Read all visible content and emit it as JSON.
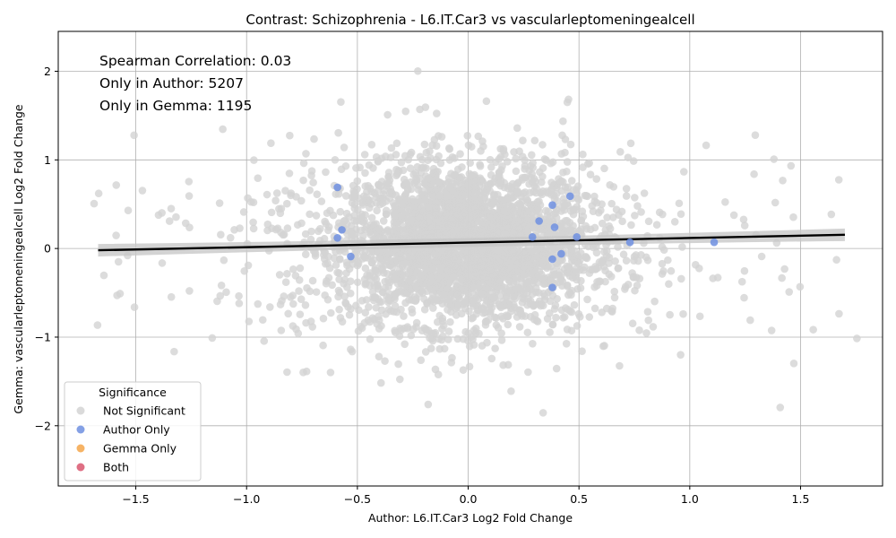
{
  "chart_data": {
    "type": "scatter",
    "title": "Contrast: Schizophrenia - L6.IT.Car3 vs vascularleptomeningealcell",
    "xlabel": "Author: L6.IT.Car3 Log2 Fold Change",
    "ylabel": "Gemma: vascularleptomeningealcell Log2 Fold Change",
    "xlim": [
      -1.85,
      1.87
    ],
    "ylim": [
      -2.68,
      2.45
    ],
    "xticks": [
      -1.5,
      -1.0,
      -0.5,
      0.0,
      0.5,
      1.0,
      1.5
    ],
    "xtick_labels": [
      "−1.5",
      "−1.0",
      "−0.5",
      "0.0",
      "0.5",
      "1.0",
      "1.5"
    ],
    "yticks": [
      -2,
      -1,
      0,
      1,
      2
    ],
    "ytick_labels": [
      "−2",
      "−1",
      "0",
      "1",
      "2"
    ],
    "grid": true,
    "annotations": [
      "Spearman Correlation: 0.03",
      "Only in Author: 5207",
      "Only in Gemma: 1195"
    ],
    "legend": {
      "title": "Significance",
      "placement": "lower-left",
      "entries": [
        {
          "label": "Not Significant",
          "color": "#d3d3d3"
        },
        {
          "label": "Author Only",
          "color": "#6f8fe0"
        },
        {
          "label": "Gemma Only",
          "color": "#f5a64a"
        },
        {
          "label": "Both",
          "color": "#d9566e"
        }
      ]
    },
    "regression_line": {
      "x": [
        -1.67,
        1.7
      ],
      "y": [
        -0.02,
        0.155
      ],
      "color": "#000000"
    },
    "not_significant_cloud": {
      "note_count": 0,
      "core_center": [
        -0.02,
        0.05
      ],
      "core_spread": [
        0.28,
        0.45
      ],
      "color": "#d3d3d3"
    },
    "series": [
      {
        "name": "Author Only",
        "color": "#6f8fe0",
        "points": [
          {
            "x": -0.59,
            "y": 0.69
          },
          {
            "x": -0.57,
            "y": 0.21
          },
          {
            "x": -0.59,
            "y": 0.12
          },
          {
            "x": -0.53,
            "y": -0.09
          },
          {
            "x": 0.46,
            "y": 0.59
          },
          {
            "x": 0.38,
            "y": 0.49
          },
          {
            "x": 0.39,
            "y": 0.24
          },
          {
            "x": 0.49,
            "y": 0.13
          },
          {
            "x": 0.32,
            "y": 0.31
          },
          {
            "x": 0.29,
            "y": 0.13
          },
          {
            "x": 0.42,
            "y": -0.06
          },
          {
            "x": 0.38,
            "y": -0.12
          },
          {
            "x": 0.38,
            "y": -0.44
          },
          {
            "x": 0.73,
            "y": 0.07
          },
          {
            "x": 1.11,
            "y": 0.07
          }
        ]
      },
      {
        "name": "Gemma Only",
        "color": "#f5a64a",
        "points": []
      },
      {
        "name": "Both",
        "color": "#d9566e",
        "points": []
      }
    ]
  }
}
